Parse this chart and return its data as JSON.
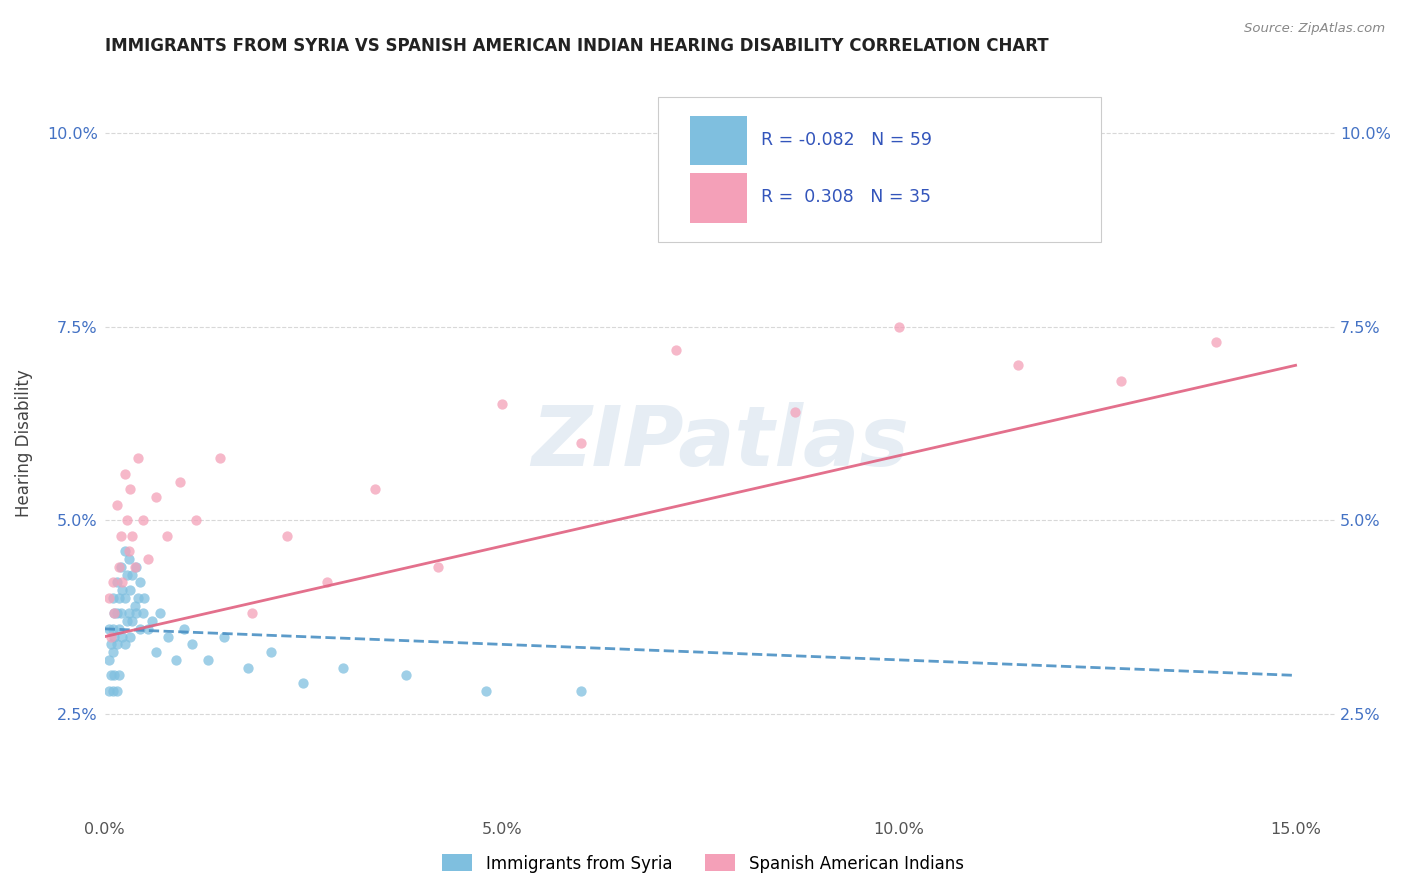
{
  "title": "IMMIGRANTS FROM SYRIA VS SPANISH AMERICAN INDIAN HEARING DISABILITY CORRELATION CHART",
  "source": "Source: ZipAtlas.com",
  "ylabel": "Hearing Disability",
  "legend_label1": "Immigrants from Syria",
  "legend_label2": "Spanish American Indians",
  "r1": -0.082,
  "n1": 59,
  "r2": 0.308,
  "n2": 35,
  "color1": "#7fbfdf",
  "color2": "#f4a0b8",
  "line1_color": "#4a90c4",
  "line2_color": "#e06080",
  "background_color": "#ffffff",
  "grid_color": "#d8d8d8",
  "xlim": [
    0.0,
    0.155
  ],
  "ylim": [
    0.012,
    0.108
  ],
  "xticks": [
    0.0,
    0.05,
    0.1,
    0.15
  ],
  "xtick_labels": [
    "0.0%",
    "5.0%",
    "10.0%",
    "15.0%"
  ],
  "yticks": [
    0.025,
    0.05,
    0.075,
    0.1
  ],
  "ytick_labels": [
    "2.5%",
    "5.0%",
    "7.5%",
    "10.0%"
  ],
  "watermark": "ZIPatlas",
  "syria_x": [
    0.0005,
    0.0005,
    0.0005,
    0.0008,
    0.0008,
    0.001,
    0.001,
    0.001,
    0.001,
    0.0012,
    0.0012,
    0.0012,
    0.0015,
    0.0015,
    0.0015,
    0.0015,
    0.0018,
    0.0018,
    0.0018,
    0.002,
    0.002,
    0.0022,
    0.0022,
    0.0025,
    0.0025,
    0.0025,
    0.0028,
    0.0028,
    0.003,
    0.003,
    0.0032,
    0.0032,
    0.0035,
    0.0035,
    0.0038,
    0.004,
    0.004,
    0.0042,
    0.0045,
    0.0045,
    0.0048,
    0.005,
    0.0055,
    0.006,
    0.0065,
    0.007,
    0.008,
    0.009,
    0.01,
    0.011,
    0.013,
    0.015,
    0.018,
    0.021,
    0.025,
    0.03,
    0.038,
    0.048,
    0.06
  ],
  "syria_y": [
    0.036,
    0.032,
    0.028,
    0.034,
    0.03,
    0.04,
    0.036,
    0.033,
    0.028,
    0.038,
    0.035,
    0.03,
    0.042,
    0.038,
    0.034,
    0.028,
    0.04,
    0.036,
    0.03,
    0.044,
    0.038,
    0.041,
    0.035,
    0.046,
    0.04,
    0.034,
    0.043,
    0.037,
    0.045,
    0.038,
    0.041,
    0.035,
    0.043,
    0.037,
    0.039,
    0.044,
    0.038,
    0.04,
    0.042,
    0.036,
    0.038,
    0.04,
    0.036,
    0.037,
    0.033,
    0.038,
    0.035,
    0.032,
    0.036,
    0.034,
    0.032,
    0.035,
    0.031,
    0.033,
    0.029,
    0.031,
    0.03,
    0.028,
    0.028
  ],
  "indian_x": [
    0.0005,
    0.0008,
    0.001,
    0.0012,
    0.0015,
    0.0018,
    0.002,
    0.0022,
    0.0025,
    0.0028,
    0.003,
    0.0032,
    0.0035,
    0.0038,
    0.0042,
    0.0048,
    0.0055,
    0.0065,
    0.0078,
    0.0095,
    0.0115,
    0.0145,
    0.0185,
    0.023,
    0.028,
    0.034,
    0.042,
    0.05,
    0.06,
    0.072,
    0.087,
    0.1,
    0.115,
    0.128,
    0.14
  ],
  "indian_y": [
    0.04,
    0.035,
    0.042,
    0.038,
    0.052,
    0.044,
    0.048,
    0.042,
    0.056,
    0.05,
    0.046,
    0.054,
    0.048,
    0.044,
    0.058,
    0.05,
    0.045,
    0.053,
    0.048,
    0.055,
    0.05,
    0.058,
    0.038,
    0.048,
    0.042,
    0.054,
    0.044,
    0.065,
    0.06,
    0.072,
    0.064,
    0.075,
    0.07,
    0.068,
    0.073
  ]
}
